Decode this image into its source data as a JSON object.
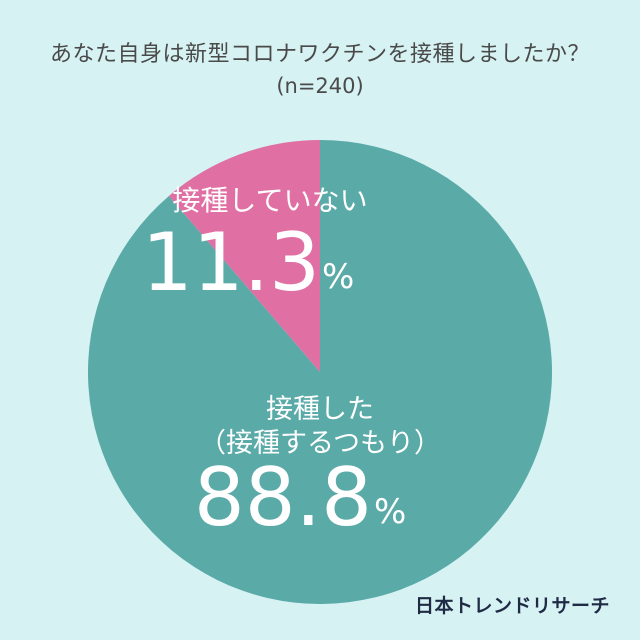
{
  "title": "あなた自身は新型コロナワクチンを接種しましたか？",
  "subtitle": "(n=240)",
  "brand": "日本トレンドリサーチ",
  "colors": {
    "background": "#d6f2f2",
    "vaccinated": "#5aaaa8",
    "not_vaccinated": "#e070a3",
    "label_text": "#ffffff"
  },
  "chart_data": {
    "type": "pie",
    "title": "あなた自身は新型コロナワクチンを接種しましたか？",
    "subtitle": "(n=240)",
    "slices": [
      {
        "label": "接種していない",
        "value": 11.3,
        "value_text": "11.3",
        "unit": "%",
        "color": "#e070a3"
      },
      {
        "label_lines": [
          "接種した",
          "（接種するつもり）"
        ],
        "value": 88.8,
        "value_text": "88.8",
        "unit": "%",
        "color": "#5aaaa8"
      }
    ]
  }
}
